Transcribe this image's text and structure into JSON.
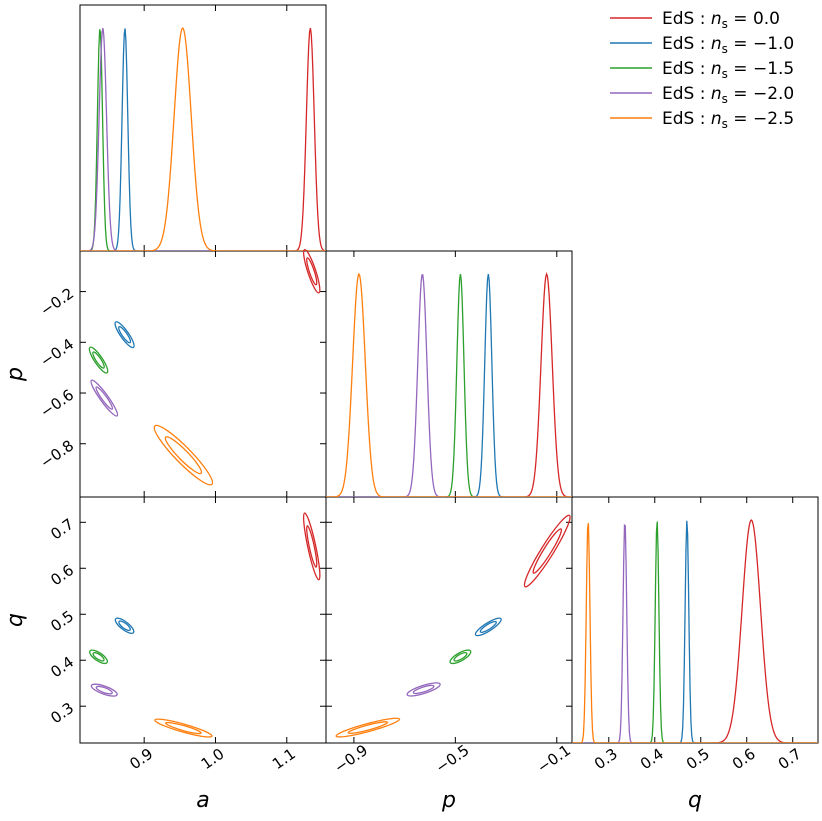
{
  "chart_data": {
    "type": "corner",
    "parameters": [
      {
        "symbol": "a",
        "label": "a",
        "range": [
          0.81,
          1.155
        ],
        "ticks": [
          "0.9",
          "1.0",
          "1.1"
        ],
        "tick_values": [
          0.9,
          1.0,
          1.1
        ]
      },
      {
        "symbol": "p",
        "label": "p",
        "range": [
          -1.01,
          -0.04
        ],
        "ticks": [
          "−0.9",
          "−0.5",
          "−0.1"
        ],
        "tick_values": [
          -0.9,
          -0.5,
          -0.1
        ],
        "ticks_left": [
          "−0.2",
          "−0.4",
          "−0.6",
          "−0.8"
        ],
        "tick_values_left": [
          -0.2,
          -0.4,
          -0.6,
          -0.8
        ]
      },
      {
        "symbol": "q",
        "label": "q",
        "range": [
          0.22,
          0.755
        ],
        "ticks": [
          "0.3",
          "0.4",
          "0.5",
          "0.6",
          "0.7"
        ],
        "tick_values": [
          0.3,
          0.4,
          0.5,
          0.6,
          0.7
        ]
      }
    ],
    "series": [
      {
        "name": "EdS : n_s = 0.0",
        "legend_prefix": "EdS : ",
        "legend_var": "n",
        "legend_sub": "s",
        "legend_value": " = 0.0",
        "color": "#d62728",
        "a": {
          "mean": 1.133,
          "sd": 0.0055
        },
        "p": {
          "mean": -0.14,
          "sd": 0.022
        },
        "q": {
          "mean": 0.61,
          "sd": 0.02
        },
        "ap": {
          "a_range": [
            1.125,
            1.145
          ],
          "p_range": [
            -0.205,
            -0.035
          ]
        },
        "aq": {
          "a_range": [
            1.125,
            1.145
          ],
          "q_range": [
            0.575,
            0.72
          ]
        },
        "pq": {
          "p_range": [
            -0.225,
            -0.05
          ],
          "q_range": [
            0.56,
            0.715
          ]
        }
      },
      {
        "name": "EdS : n_s = −1.0",
        "legend_prefix": "EdS : ",
        "legend_var": "n",
        "legend_sub": "s",
        "legend_value": " = −1.0",
        "color": "#1f77b4",
        "a": {
          "mean": 0.873,
          "sd": 0.004
        },
        "p": {
          "mean": -0.37,
          "sd": 0.014
        },
        "q": {
          "mean": 0.47,
          "sd": 0.004
        },
        "ap": {
          "a_range": [
            0.86,
            0.885
          ],
          "p_range": [
            -0.42,
            -0.32
          ]
        },
        "aq": {
          "a_range": [
            0.86,
            0.885
          ],
          "q_range": [
            0.46,
            0.49
          ]
        },
        "pq": {
          "p_range": [
            -0.42,
            -0.32
          ],
          "q_range": [
            0.455,
            0.49
          ]
        }
      },
      {
        "name": "EdS : n_s = −1.5",
        "legend_prefix": "EdS : ",
        "legend_var": "n",
        "legend_sub": "s",
        "legend_value": " = −1.5",
        "color": "#2ca02c",
        "a": {
          "mean": 0.838,
          "sd": 0.0036
        },
        "p": {
          "mean": -0.48,
          "sd": 0.014
        },
        "q": {
          "mean": 0.405,
          "sd": 0.004
        },
        "ap": {
          "a_range": [
            0.824,
            0.848
          ],
          "p_range": [
            -0.52,
            -0.42
          ]
        },
        "aq": {
          "a_range": [
            0.824,
            0.848
          ],
          "q_range": [
            0.395,
            0.42
          ]
        },
        "pq": {
          "p_range": [
            -0.52,
            -0.44
          ],
          "q_range": [
            0.395,
            0.42
          ]
        }
      },
      {
        "name": "EdS : n_s = −2.0",
        "legend_prefix": "EdS : ",
        "legend_var": "n",
        "legend_sub": "s",
        "legend_value": " = −2.0",
        "color": "#9467bd",
        "a": {
          "mean": 0.842,
          "sd": 0.0052
        },
        "p": {
          "mean": -0.63,
          "sd": 0.018
        },
        "q": {
          "mean": 0.335,
          "sd": 0.004
        },
        "ap": {
          "a_range": [
            0.826,
            0.862
          ],
          "p_range": [
            -0.69,
            -0.55
          ]
        },
        "aq": {
          "a_range": [
            0.826,
            0.862
          ],
          "q_range": [
            0.325,
            0.345
          ]
        },
        "pq": {
          "p_range": [
            -0.69,
            -0.56
          ],
          "q_range": [
            0.325,
            0.348
          ]
        }
      },
      {
        "name": "EdS : n_s = −2.5",
        "legend_prefix": "EdS : ",
        "legend_var": "n",
        "legend_sub": "s",
        "legend_value": " = −2.5",
        "color": "#ff7f0e",
        "a": {
          "mean": 0.954,
          "sd": 0.012
        },
        "p": {
          "mean": -0.88,
          "sd": 0.025
        },
        "q": {
          "mean": 0.255,
          "sd": 0.004
        },
        "ap": {
          "a_range": [
            0.915,
            0.995
          ],
          "p_range": [
            -0.96,
            -0.73
          ]
        },
        "aq": {
          "a_range": [
            0.915,
            0.995
          ],
          "q_range": [
            0.235,
            0.27
          ]
        },
        "pq": {
          "p_range": [
            -0.97,
            -0.72
          ],
          "q_range": [
            0.235,
            0.272
          ]
        }
      }
    ],
    "legend_location": "top-right",
    "grid": false
  }
}
